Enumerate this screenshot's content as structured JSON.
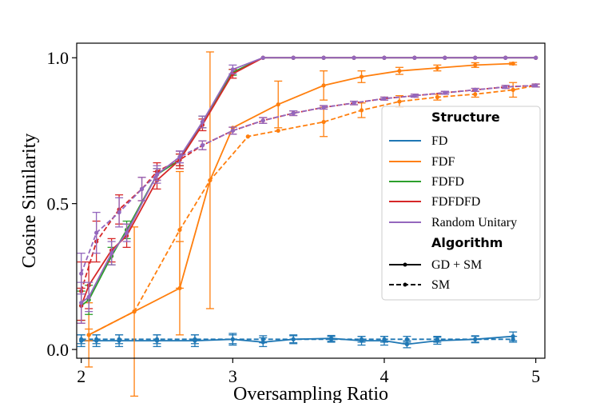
{
  "chart_data": {
    "type": "line",
    "xlabel": "Oversampling Ratio",
    "ylabel": "Cosine Similarity",
    "xlim": [
      1.97,
      5.06
    ],
    "ylim": [
      -0.03,
      1.05
    ],
    "x_ticks": [
      "2",
      "3",
      "4",
      "5"
    ],
    "y_ticks": [
      "0.0",
      "0.5",
      "1.0"
    ],
    "grid": false,
    "legend": {
      "position": "right",
      "structure_title": "Structure",
      "algorithm_title": "Algorithm",
      "structures": [
        {
          "name": "FD",
          "color": "#1f77b4"
        },
        {
          "name": "FDF",
          "color": "#ff7f0e"
        },
        {
          "name": "FDFD",
          "color": "#2ca02c"
        },
        {
          "name": "FDFDFD",
          "color": "#d62728"
        },
        {
          "name": "Random Unitary",
          "color": "#9467bd"
        }
      ],
      "algorithms": [
        {
          "name": "GD + SM",
          "style": "solid"
        },
        {
          "name": "SM",
          "style": "dashed"
        }
      ]
    },
    "series": [
      {
        "name": "FD",
        "algorithm": "GD + SM",
        "color": "#1f77b4",
        "style": "solid",
        "x": [
          2.0,
          2.1,
          2.25,
          2.5,
          2.75,
          3.0,
          3.2,
          3.4,
          3.65,
          3.85,
          4.0,
          4.15,
          4.35,
          4.6,
          4.85
        ],
        "y": [
          0.03,
          0.03,
          0.03,
          0.03,
          0.03,
          0.035,
          0.025,
          0.035,
          0.038,
          0.03,
          0.03,
          0.018,
          0.03,
          0.035,
          0.045
        ],
        "err": [
          0.02,
          0.02,
          0.02,
          0.02,
          0.02,
          0.02,
          0.015,
          0.015,
          0.01,
          0.015,
          0.015,
          0.012,
          0.012,
          0.012,
          0.015
        ]
      },
      {
        "name": "FD",
        "algorithm": "SM",
        "color": "#1f77b4",
        "style": "dashed",
        "x": [
          2.0,
          2.1,
          2.25,
          2.5,
          2.75,
          3.0,
          3.2,
          3.4,
          3.65,
          3.85,
          4.0,
          4.15,
          4.35,
          4.6,
          4.85
        ],
        "y": [
          0.035,
          0.035,
          0.035,
          0.035,
          0.035,
          0.035,
          0.035,
          0.035,
          0.035,
          0.035,
          0.035,
          0.035,
          0.035,
          0.035,
          0.035
        ],
        "err": [
          0.015,
          0.015,
          0.015,
          0.015,
          0.015,
          0.015,
          0.012,
          0.012,
          0.01,
          0.01,
          0.01,
          0.01,
          0.01,
          0.01,
          0.01
        ]
      },
      {
        "name": "FDF",
        "algorithm": "GD + SM",
        "color": "#ff7f0e",
        "style": "solid",
        "x": [
          2.05,
          2.35,
          2.65,
          2.85,
          3.0,
          3.3,
          3.6,
          3.85,
          4.1,
          4.35,
          4.6,
          4.85
        ],
        "y": [
          0.05,
          0.13,
          0.21,
          0.58,
          0.76,
          0.84,
          0.905,
          0.935,
          0.955,
          0.965,
          0.975,
          0.98
        ],
        "err": [
          0.02,
          0.29,
          0.16,
          0.44,
          0.0,
          0.08,
          0.05,
          0.02,
          0.012,
          0.01,
          0.008,
          0.004
        ]
      },
      {
        "name": "FDF",
        "algorithm": "SM",
        "color": "#ff7f0e",
        "style": "dashed",
        "x": [
          2.05,
          2.35,
          2.65,
          2.85,
          3.1,
          3.3,
          3.6,
          3.85,
          4.1,
          4.35,
          4.6,
          4.85,
          5.0
        ],
        "y": [
          0.05,
          0.13,
          0.41,
          0.58,
          0.73,
          0.75,
          0.78,
          0.82,
          0.85,
          0.865,
          0.875,
          0.89,
          0.905
        ],
        "err": [
          0.11,
          0.0,
          0.2,
          0.0,
          0.0,
          0.0,
          0.05,
          0.025,
          0.02,
          0.01,
          0.01,
          0.025,
          0.005
        ]
      },
      {
        "name": "FDFD",
        "algorithm": "GD + SM",
        "color": "#2ca02c",
        "style": "solid",
        "x": [
          2.0,
          2.05,
          2.2,
          2.3,
          2.5,
          2.65,
          2.8,
          3.0,
          3.2,
          3.4,
          3.6,
          3.8,
          4.0,
          4.2,
          4.4,
          4.6,
          4.8,
          5.0
        ],
        "y": [
          0.15,
          0.17,
          0.32,
          0.41,
          0.6,
          0.65,
          0.78,
          0.95,
          1.0,
          1.0,
          1.0,
          1.0,
          1.0,
          1.0,
          1.0,
          1.0,
          1.0,
          1.0
        ],
        "err": [
          0.05,
          0.05,
          0.03,
          0.03,
          0.02,
          0.02,
          0.02,
          0.01,
          0.0,
          0.0,
          0.0,
          0.0,
          0.0,
          0.0,
          0.0,
          0.0,
          0.0,
          0.0
        ]
      },
      {
        "name": "FDFDFD",
        "algorithm": "GD + SM",
        "color": "#d62728",
        "style": "solid",
        "x": [
          2.0,
          2.05,
          2.2,
          2.3,
          2.5,
          2.65,
          2.8,
          3.0,
          3.2,
          3.4,
          3.6,
          3.8,
          4.0,
          4.2,
          4.4,
          4.6,
          4.8,
          5.0
        ],
        "y": [
          0.15,
          0.22,
          0.34,
          0.39,
          0.58,
          0.65,
          0.77,
          0.945,
          1.0,
          1.0,
          1.0,
          1.0,
          1.0,
          1.0,
          1.0,
          1.0,
          1.0,
          1.0
        ],
        "err": [
          0.06,
          0.08,
          0.04,
          0.04,
          0.03,
          0.03,
          0.02,
          0.015,
          0.0,
          0.0,
          0.0,
          0.0,
          0.0,
          0.0,
          0.0,
          0.0,
          0.0,
          0.0
        ]
      },
      {
        "name": "FDFDFD",
        "algorithm": "SM",
        "color": "#d62728",
        "style": "dashed",
        "x": [
          2.0,
          2.1,
          2.25,
          2.4,
          2.5,
          2.65,
          2.8,
          3.0,
          3.2,
          3.4,
          3.6,
          3.8,
          4.0,
          4.2,
          4.4,
          4.6,
          4.8,
          5.0
        ],
        "y": [
          0.2,
          0.37,
          0.48,
          0.55,
          0.61,
          0.65,
          0.7,
          0.75,
          0.785,
          0.81,
          0.83,
          0.845,
          0.86,
          0.87,
          0.88,
          0.89,
          0.9,
          0.905
        ],
        "err": [
          0.1,
          0.07,
          0.05,
          0.04,
          0.03,
          0.02,
          0.015,
          0.012,
          0.01,
          0.008,
          0.006,
          0.006,
          0.005,
          0.005,
          0.005,
          0.005,
          0.005,
          0.005
        ]
      },
      {
        "name": "Random Unitary",
        "algorithm": "GD + SM",
        "color": "#9467bd",
        "style": "solid",
        "x": [
          2.0,
          2.05,
          2.2,
          2.3,
          2.5,
          2.65,
          2.8,
          3.0,
          3.2,
          3.4,
          3.6,
          3.8,
          4.0,
          4.2,
          4.4,
          4.6,
          4.8,
          5.0
        ],
        "y": [
          0.16,
          0.18,
          0.33,
          0.4,
          0.6,
          0.66,
          0.78,
          0.96,
          1.0,
          1.0,
          1.0,
          1.0,
          1.0,
          1.0,
          1.0,
          1.0,
          1.0,
          1.0
        ],
        "err": [
          0.07,
          0.05,
          0.04,
          0.03,
          0.02,
          0.02,
          0.02,
          0.015,
          0.0,
          0.0,
          0.0,
          0.0,
          0.0,
          0.0,
          0.0,
          0.0,
          0.0,
          0.0
        ]
      },
      {
        "name": "Random Unitary",
        "algorithm": "SM",
        "color": "#9467bd",
        "style": "dashed",
        "x": [
          2.0,
          2.1,
          2.25,
          2.4,
          2.5,
          2.65,
          2.8,
          3.0,
          3.2,
          3.4,
          3.6,
          3.8,
          4.0,
          4.2,
          4.4,
          4.6,
          4.8,
          5.0
        ],
        "y": [
          0.26,
          0.4,
          0.47,
          0.55,
          0.6,
          0.66,
          0.7,
          0.75,
          0.785,
          0.81,
          0.83,
          0.845,
          0.86,
          0.87,
          0.88,
          0.89,
          0.9,
          0.905
        ],
        "err": [
          0.07,
          0.07,
          0.05,
          0.04,
          0.03,
          0.02,
          0.015,
          0.012,
          0.01,
          0.008,
          0.006,
          0.006,
          0.005,
          0.005,
          0.005,
          0.005,
          0.005,
          0.005
        ]
      }
    ]
  }
}
